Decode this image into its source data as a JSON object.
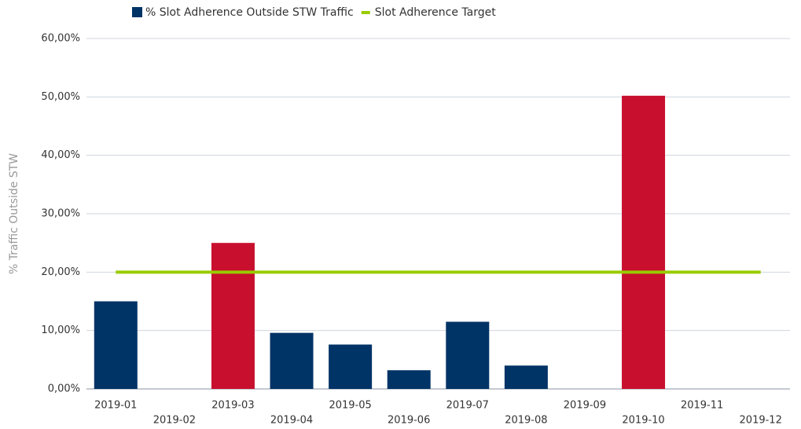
{
  "chart_data": {
    "type": "bar",
    "categories": [
      "2019-01",
      "2019-02",
      "2019-03",
      "2019-04",
      "2019-05",
      "2019-06",
      "2019-07",
      "2019-08",
      "2019-09",
      "2019-10",
      "2019-11",
      "2019-12"
    ],
    "series": [
      {
        "name": "% Slot Adherence Outside STW Traffic",
        "type": "bar",
        "color": "#003366",
        "colors": [
          "#003366",
          "#003366",
          "#c8102e",
          "#003366",
          "#003366",
          "#003366",
          "#003366",
          "#003366",
          "#003366",
          "#c8102e",
          "#003366",
          "#003366"
        ],
        "values": [
          15,
          0,
          25,
          9.6,
          7.6,
          3.2,
          11.5,
          4,
          0,
          50.2,
          0,
          0
        ]
      },
      {
        "name": "Slot Adherence Target",
        "type": "line",
        "color": "#99cc00",
        "values": [
          20,
          20,
          20,
          20,
          20,
          20,
          20,
          20,
          20,
          20,
          20,
          20
        ]
      }
    ],
    "y_label": "% Traffic Outside STW",
    "ylim": [
      0,
      60
    ],
    "yticks": [
      {
        "value": 0,
        "label": "0,00%"
      },
      {
        "value": 10,
        "label": "10,00%"
      },
      {
        "value": 20,
        "label": "20,00%"
      },
      {
        "value": 30,
        "label": "30,00%"
      },
      {
        "value": 40,
        "label": "40,00%"
      },
      {
        "value": 50,
        "label": "50,00%"
      },
      {
        "value": 60,
        "label": "60,00%"
      }
    ],
    "grid": true,
    "legend": "top"
  }
}
